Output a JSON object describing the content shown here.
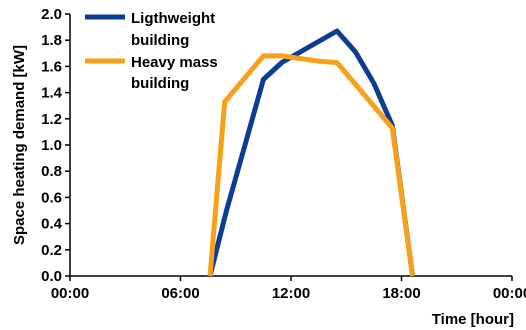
{
  "chart_data": {
    "type": "line",
    "xlabel": "Time [hour]",
    "ylabel": "Space heating demand [kW]",
    "xlim": [
      0,
      24
    ],
    "ylim": [
      0,
      2.0
    ],
    "x_ticks": [
      0,
      6,
      12,
      18,
      24
    ],
    "x_tick_labels": [
      "00:00",
      "06:00",
      "12:00",
      "18:00",
      "00:00"
    ],
    "y_ticks": [
      0,
      0.2,
      0.4,
      0.6,
      0.8,
      1.0,
      1.2,
      1.4,
      1.6,
      1.8,
      2.0
    ],
    "y_tick_labels": [
      "0.0",
      "0.2",
      "0.4",
      "0.6",
      "0.8",
      "1.0",
      "1.2",
      "1.4",
      "1.6",
      "1.8",
      "2.0"
    ],
    "grid": false,
    "legend_position": "top-left",
    "series": [
      {
        "name": "Ligthweight building",
        "color": "#0b3d91",
        "x": [
          7.6,
          8.5,
          9.5,
          10.5,
          11.5,
          12.5,
          13.5,
          14.5,
          15.5,
          16.5,
          17.5,
          18.6
        ],
        "y": [
          0.0,
          0.5,
          1.0,
          1.5,
          1.63,
          1.71,
          1.79,
          1.87,
          1.71,
          1.47,
          1.15,
          0.0
        ]
      },
      {
        "name": "Heavy mass building",
        "color": "#f9a01b",
        "x": [
          7.6,
          8.4,
          10.5,
          11.5,
          12.5,
          13.5,
          14.5,
          17.5,
          18.6
        ],
        "y": [
          0.0,
          1.33,
          1.68,
          1.68,
          1.66,
          1.64,
          1.63,
          1.13,
          0.0
        ]
      }
    ]
  }
}
